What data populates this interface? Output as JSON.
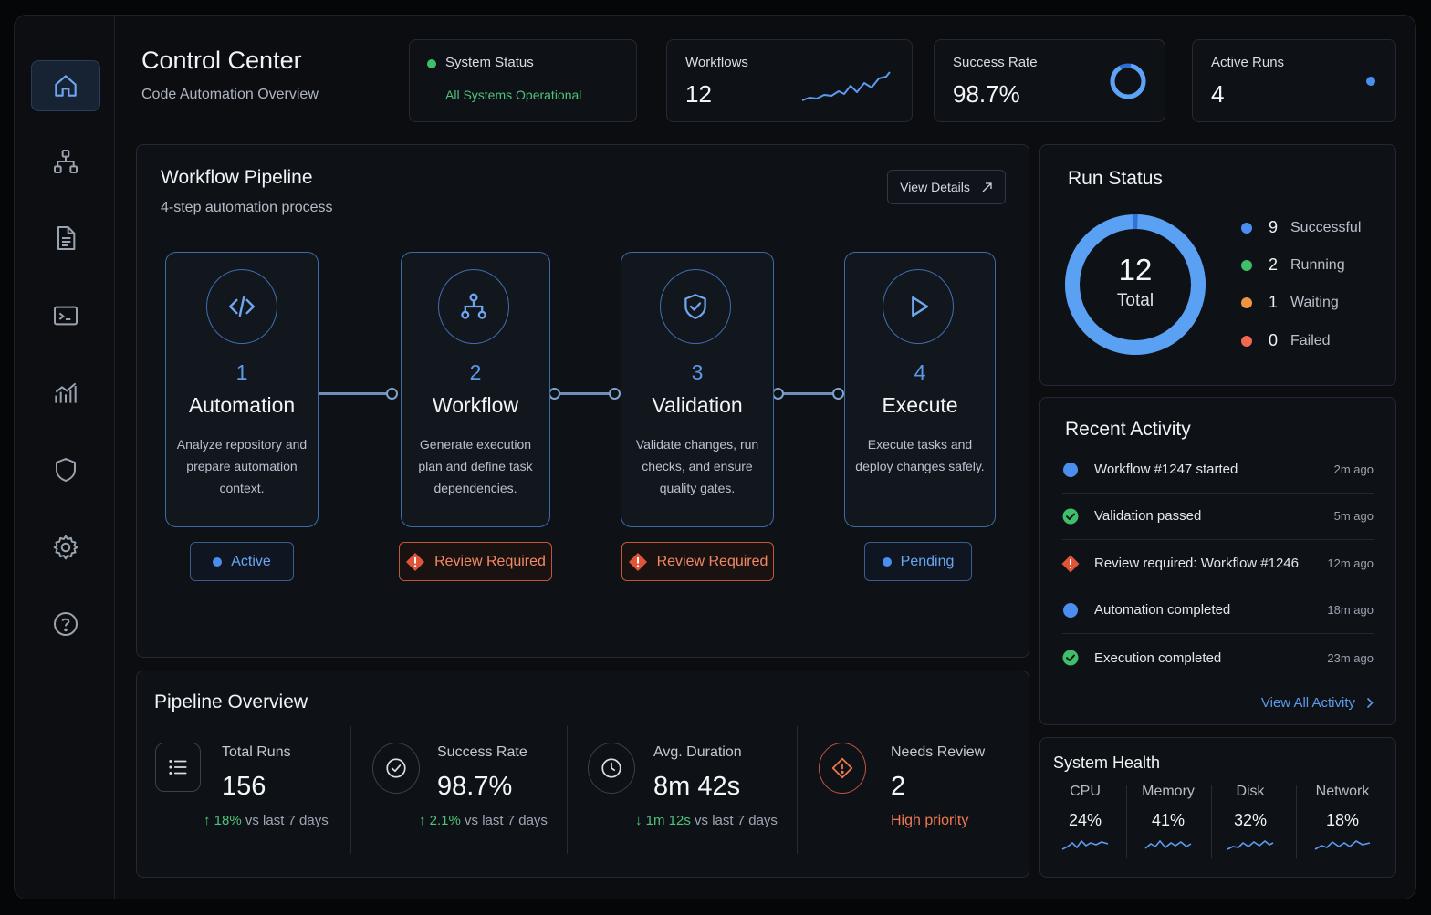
{
  "header": {
    "title": "Control Center",
    "subtitle": "Code Automation Overview"
  },
  "stats": {
    "system_status": {
      "label": "System Status",
      "value": "All Systems Operational"
    },
    "workflows": {
      "label": "Workflows",
      "value": "12"
    },
    "success_rate": {
      "label": "Success Rate",
      "value": "98.7%"
    },
    "active_runs": {
      "label": "Active Runs",
      "value": "4"
    }
  },
  "sidebar": {
    "items": [
      {
        "name": "home",
        "icon": "home-icon"
      },
      {
        "name": "workflows",
        "icon": "hierarchy-icon"
      },
      {
        "name": "documents",
        "icon": "document-icon"
      },
      {
        "name": "terminal",
        "icon": "terminal-icon"
      },
      {
        "name": "analytics",
        "icon": "chart-icon"
      },
      {
        "name": "security",
        "icon": "shield-icon"
      },
      {
        "name": "settings",
        "icon": "gear-icon"
      },
      {
        "name": "help",
        "icon": "help-icon"
      }
    ]
  },
  "pipeline": {
    "title": "Workflow Pipeline",
    "subtitle": "4-step automation process",
    "view_details": "View Details",
    "steps": [
      {
        "num": "1",
        "name": "Automation",
        "desc": "Analyze repository and prepare automation context.",
        "status": "Active",
        "icon": "code-icon"
      },
      {
        "num": "2",
        "name": "Workflow",
        "desc": "Generate execution plan and define task dependencies.",
        "status": "Review Required",
        "icon": "hierarchy-icon"
      },
      {
        "num": "3",
        "name": "Validation",
        "desc": "Validate changes, run checks, and ensure quality gates.",
        "status": "Review Required",
        "icon": "shield-check-icon"
      },
      {
        "num": "4",
        "name": "Execute",
        "desc": "Execute tasks and deploy changes safely.",
        "status": "Pending",
        "icon": "play-icon"
      }
    ]
  },
  "overview": {
    "title": "Pipeline Overview",
    "items": [
      {
        "label": "Total Runs",
        "value": "156",
        "delta": "18%",
        "delta_text": "vs last 7 days"
      },
      {
        "label": "Success Rate",
        "value": "98.7%",
        "delta": "2.1%",
        "delta_text": "vs last 7 days"
      },
      {
        "label": "Avg. Duration",
        "value": "8m 42s",
        "delta": "1m 12s",
        "delta_text": "vs last 7 days"
      },
      {
        "label": "Needs Review",
        "value": "2",
        "note": "High priority"
      }
    ]
  },
  "run_status": {
    "title": "Run Status",
    "total": "12",
    "total_label": "Total",
    "legend": [
      {
        "count": "9",
        "label": "Successful",
        "color": "#4a8fef"
      },
      {
        "count": "2",
        "label": "Running",
        "color": "#3fbf6a"
      },
      {
        "count": "1",
        "label": "Waiting",
        "color": "#f0953f"
      },
      {
        "count": "0",
        "label": "Failed",
        "color": "#ef6a4f"
      }
    ]
  },
  "activity": {
    "title": "Recent Activity",
    "items": [
      {
        "text": "Workflow #1247 started",
        "time": "2m ago",
        "kind": "info"
      },
      {
        "text": "Validation passed",
        "time": "5m ago",
        "kind": "success"
      },
      {
        "text": "Review required: Workflow #1246",
        "time": "12m ago",
        "kind": "warning"
      },
      {
        "text": "Automation completed",
        "time": "18m ago",
        "kind": "info"
      },
      {
        "text": "Execution completed",
        "time": "23m ago",
        "kind": "success"
      }
    ],
    "view_all": "View All Activity"
  },
  "health": {
    "title": "System Health",
    "metrics": [
      {
        "label": "CPU",
        "value": "24%"
      },
      {
        "label": "Memory",
        "value": "41%"
      },
      {
        "label": "Disk",
        "value": "32%"
      },
      {
        "label": "Network",
        "value": "18%"
      }
    ]
  },
  "colors": {
    "accent": "#4a8fef",
    "success": "#3fbf6a",
    "warning": "#f0953f",
    "danger": "#ef6a4f"
  }
}
